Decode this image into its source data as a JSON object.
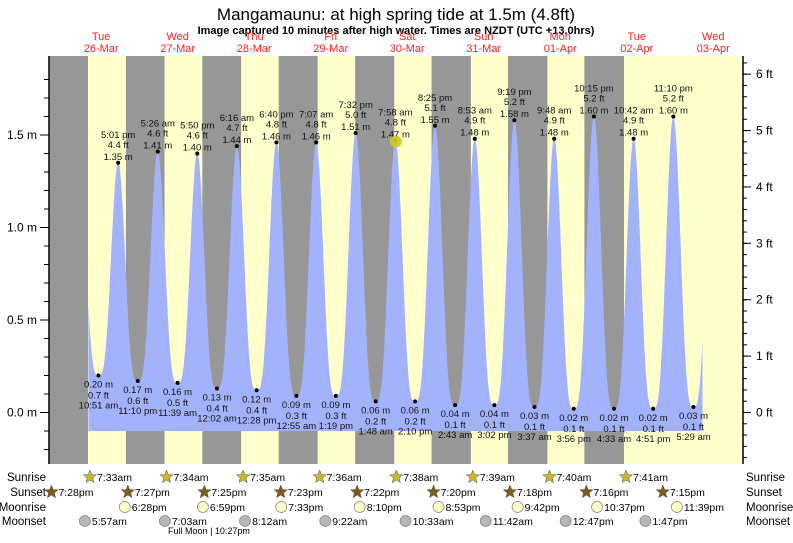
{
  "chart_data": {
    "type": "area",
    "title": "Mangamaunu: at high  spring tide at 1.5m (4.8ft)",
    "subtitle": "Image captured 10 minutes after high water. Times are NZDT (UTC +13.0hrs)",
    "days": [
      {
        "dow": "Tue",
        "date": "26-Mar"
      },
      {
        "dow": "Wed",
        "date": "27-Mar"
      },
      {
        "dow": "Thu",
        "date": "28-Mar"
      },
      {
        "dow": "Fri",
        "date": "29-Mar"
      },
      {
        "dow": "Sat",
        "date": "30-Mar"
      },
      {
        "dow": "Sun",
        "date": "31-Mar"
      },
      {
        "dow": "Mon",
        "date": "01-Apr"
      },
      {
        "dow": "Tue",
        "date": "02-Apr"
      },
      {
        "dow": "Wed",
        "date": "03-Apr"
      }
    ],
    "left_axis": {
      "unit": "m",
      "ticks": [
        "0.0 m",
        "0.5 m",
        "1.0 m",
        "1.5 m"
      ],
      "tick_values": [
        0,
        0.5,
        1.0,
        1.5
      ],
      "range": [
        -0.27,
        1.93
      ]
    },
    "right_axis": {
      "unit": "ft",
      "ticks": [
        "0 ft",
        "1 ft",
        "2 ft",
        "3 ft",
        "4 ft",
        "5 ft",
        "6 ft"
      ],
      "tick_values": [
        0,
        1,
        2,
        3,
        4,
        5,
        6
      ]
    },
    "extrema": [
      {
        "type": "low",
        "day": 0,
        "time": "10:51 am",
        "m": "0.20 m",
        "ft": "0.7 ft",
        "value": 0.2
      },
      {
        "type": "high",
        "day": 0,
        "time": "5:01 pm",
        "m": "1.35 m",
        "ft": "4.4 ft",
        "value": 1.35
      },
      {
        "type": "low",
        "day": 0,
        "time": "11:10 pm",
        "m": "0.17 m",
        "ft": "0.6 ft",
        "value": 0.17
      },
      {
        "type": "high",
        "day": 1,
        "time": "5:26 am",
        "m": "1.41 m",
        "ft": "4.6 ft",
        "value": 1.41
      },
      {
        "type": "low",
        "day": 1,
        "time": "11:39 am",
        "m": "0.16 m",
        "ft": "0.5 ft",
        "value": 0.16
      },
      {
        "type": "high",
        "day": 1,
        "time": "5:50 pm",
        "m": "1.40 m",
        "ft": "4.6 ft",
        "value": 1.4
      },
      {
        "type": "low",
        "day": 2,
        "time": "12:02 am",
        "m": "0.13 m",
        "ft": "0.4 ft",
        "value": 0.13
      },
      {
        "type": "high",
        "day": 2,
        "time": "6:16 am",
        "m": "1.44 m",
        "ft": "4.7 ft",
        "value": 1.44
      },
      {
        "type": "low",
        "day": 2,
        "time": "12:28 pm",
        "m": "0.12 m",
        "ft": "0.4 ft",
        "value": 0.12
      },
      {
        "type": "high",
        "day": 2,
        "time": "6:40 pm",
        "m": "1.46 m",
        "ft": "4.8 ft",
        "value": 1.46
      },
      {
        "type": "low",
        "day": 3,
        "time": "12:55 am",
        "m": "0.09 m",
        "ft": "0.3 ft",
        "value": 0.09
      },
      {
        "type": "high",
        "day": 3,
        "time": "7:07 am",
        "m": "1.46 m",
        "ft": "4.8 ft",
        "value": 1.46
      },
      {
        "type": "low",
        "day": 3,
        "time": "1:19 pm",
        "m": "0.09 m",
        "ft": "0.3 ft",
        "value": 0.09
      },
      {
        "type": "high",
        "day": 3,
        "time": "7:32 pm",
        "m": "1.51 m",
        "ft": "5.0 ft",
        "value": 1.51
      },
      {
        "type": "low",
        "day": 4,
        "time": "1:48 am",
        "m": "0.06 m",
        "ft": "0.2 ft",
        "value": 0.06
      },
      {
        "type": "high",
        "day": 4,
        "time": "7:58 am",
        "m": "1.47 m",
        "ft": "4.8 ft",
        "value": 1.47
      },
      {
        "type": "low",
        "day": 4,
        "time": "2:10 pm",
        "m": "0.06 m",
        "ft": "0.2 ft",
        "value": 0.06
      },
      {
        "type": "high",
        "day": 4,
        "time": "8:25 pm",
        "m": "1.55 m",
        "ft": "5.1 ft",
        "value": 1.55
      },
      {
        "type": "low",
        "day": 5,
        "time": "2:43 am",
        "m": "0.04 m",
        "ft": "0.1 ft",
        "value": 0.04
      },
      {
        "type": "high",
        "day": 5,
        "time": "8:53 am",
        "m": "1.48 m",
        "ft": "4.9 ft",
        "value": 1.48
      },
      {
        "type": "low",
        "day": 5,
        "time": "3:02 pm",
        "m": "0.04 m",
        "ft": "0.1 ft",
        "value": 0.04
      },
      {
        "type": "high",
        "day": 5,
        "time": "9:19 pm",
        "m": "1.58 m",
        "ft": "5.2 ft",
        "value": 1.58
      },
      {
        "type": "low",
        "day": 6,
        "time": "3:37 am",
        "m": "0.03 m",
        "ft": "0.1 ft",
        "value": 0.03
      },
      {
        "type": "high",
        "day": 6,
        "time": "9:48 am",
        "m": "1.48 m",
        "ft": "4.9 ft",
        "value": 1.48
      },
      {
        "type": "low",
        "day": 6,
        "time": "3:56 pm",
        "m": "0.02 m",
        "ft": "0.1 ft",
        "value": 0.02
      },
      {
        "type": "high",
        "day": 6,
        "time": "10:15 pm",
        "m": "1.60 m",
        "ft": "5.2 ft",
        "value": 1.6
      },
      {
        "type": "low",
        "day": 7,
        "time": "4:33 am",
        "m": "0.02 m",
        "ft": "0.1 ft",
        "value": 0.02
      },
      {
        "type": "high",
        "day": 7,
        "time": "10:42 am",
        "m": "1.48 m",
        "ft": "4.9 ft",
        "value": 1.48
      },
      {
        "type": "low",
        "day": 7,
        "time": "4:51 pm",
        "m": "0.02 m",
        "ft": "0.1 ft",
        "value": 0.02
      },
      {
        "type": "high",
        "day": 7,
        "time": "11:10 pm",
        "m": "1.60 m",
        "ft": "5.2 ft",
        "value": 1.6
      },
      {
        "type": "low",
        "day": 8,
        "time": "5:29 am",
        "m": "0.03 m",
        "ft": "0.1 ft",
        "value": 0.03
      }
    ],
    "current_marker": {
      "day": 4,
      "time": "8:08 am",
      "value": 1.47
    },
    "rows": {
      "labels": {
        "sunrise": "Sunrise",
        "sunset": "Sunset",
        "moonrise": "Moonrise",
        "moonset": "Moonset"
      },
      "sunrise": [
        {
          "day": 0,
          "time": "7:33am"
        },
        {
          "day": 1,
          "time": "7:34am"
        },
        {
          "day": 2,
          "time": "7:35am"
        },
        {
          "day": 3,
          "time": "7:36am"
        },
        {
          "day": 4,
          "time": "7:38am"
        },
        {
          "day": 5,
          "time": "7:39am"
        },
        {
          "day": 6,
          "time": "7:40am"
        },
        {
          "day": 7,
          "time": "7:41am"
        }
      ],
      "sunset": [
        {
          "day": -1,
          "time": "7:28pm"
        },
        {
          "day": 0,
          "time": "7:27pm"
        },
        {
          "day": 1,
          "time": "7:25pm"
        },
        {
          "day": 2,
          "time": "7:23pm"
        },
        {
          "day": 3,
          "time": "7:22pm"
        },
        {
          "day": 4,
          "time": "7:20pm"
        },
        {
          "day": 5,
          "time": "7:18pm"
        },
        {
          "day": 6,
          "time": "7:16pm"
        },
        {
          "day": 7,
          "time": "7:15pm"
        }
      ],
      "moonrise": [
        {
          "day": 0,
          "time": "6:28pm"
        },
        {
          "day": 1,
          "time": "6:59pm"
        },
        {
          "day": 2,
          "time": "7:33pm"
        },
        {
          "day": 3,
          "time": "8:10pm"
        },
        {
          "day": 4,
          "time": "8:53pm"
        },
        {
          "day": 5,
          "time": "9:42pm"
        },
        {
          "day": 6,
          "time": "10:37pm"
        },
        {
          "day": 7,
          "time": "11:39pm"
        }
      ],
      "moonset": [
        {
          "day": 0,
          "time": "5:57am"
        },
        {
          "day": 1,
          "time": "7:03am"
        },
        {
          "day": 2,
          "time": "8:12am"
        },
        {
          "day": 3,
          "time": "9:22am"
        },
        {
          "day": 4,
          "time": "10:33am"
        },
        {
          "day": 5,
          "time": "11:42am"
        },
        {
          "day": 6,
          "time": "12:47pm"
        },
        {
          "day": 7,
          "time": "1:47pm"
        }
      ]
    },
    "moon_phase": "Full Moon | 10:27pm",
    "colors": {
      "water": "#a3b3fb",
      "night": "#979797",
      "day": "#ffffcc",
      "date": "#ff2020",
      "sunrise": "#c8b830",
      "sunset": "#7a5c20",
      "moonrise": "#ffffc8",
      "moonset": "#b8b8b0",
      "marker": "#cccc22"
    }
  }
}
